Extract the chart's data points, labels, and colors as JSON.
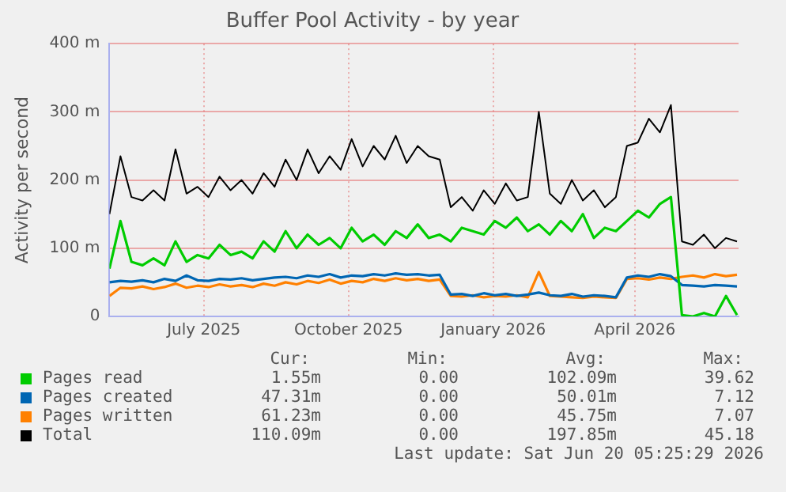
{
  "chart_data": {
    "type": "line",
    "title": "Buffer Pool Activity - by year",
    "ylabel": "Activity per second",
    "x": [
      "2025-05-16",
      "2025-05-23",
      "2025-05-30",
      "2025-06-06",
      "2025-06-13",
      "2025-06-20",
      "2025-06-27",
      "2025-07-04",
      "2025-07-11",
      "2025-07-18",
      "2025-07-25",
      "2025-08-01",
      "2025-08-08",
      "2025-08-15",
      "2025-08-22",
      "2025-08-29",
      "2025-09-05",
      "2025-09-12",
      "2025-09-19",
      "2025-09-26",
      "2025-10-03",
      "2025-10-10",
      "2025-10-17",
      "2025-10-24",
      "2025-10-31",
      "2025-11-07",
      "2025-11-14",
      "2025-11-21",
      "2025-11-28",
      "2025-12-05",
      "2025-12-12",
      "2025-12-19",
      "2025-12-26",
      "2026-01-02",
      "2026-01-09",
      "2026-01-16",
      "2026-01-23",
      "2026-01-30",
      "2026-02-06",
      "2026-02-13",
      "2026-02-20",
      "2026-02-27",
      "2026-03-06",
      "2026-03-13",
      "2026-03-20",
      "2026-03-27",
      "2026-04-03",
      "2026-04-10",
      "2026-04-17",
      "2026-04-24",
      "2026-05-01",
      "2026-05-08",
      "2026-05-15",
      "2026-05-22",
      "2026-05-29",
      "2026-06-05",
      "2026-06-12",
      "2026-06-19"
    ],
    "series": [
      {
        "name": "Pages read",
        "color": "#00cc00",
        "values": [
          70,
          140,
          80,
          75,
          85,
          75,
          110,
          80,
          90,
          85,
          105,
          90,
          95,
          85,
          110,
          95,
          125,
          100,
          120,
          105,
          115,
          100,
          130,
          110,
          120,
          105,
          125,
          115,
          135,
          115,
          120,
          110,
          130,
          125,
          120,
          140,
          130,
          145,
          125,
          135,
          120,
          140,
          125,
          150,
          115,
          130,
          125,
          140,
          155,
          145,
          165,
          175,
          2,
          0,
          5,
          0,
          30,
          2
        ]
      },
      {
        "name": "Pages created",
        "color": "#0066b3",
        "values": [
          50,
          52,
          51,
          53,
          50,
          55,
          52,
          60,
          53,
          52,
          55,
          54,
          56,
          53,
          55,
          57,
          58,
          56,
          60,
          58,
          62,
          57,
          60,
          59,
          62,
          60,
          63,
          61,
          62,
          60,
          61,
          32,
          33,
          30,
          34,
          31,
          33,
          30,
          32,
          35,
          31,
          30,
          33,
          29,
          31,
          30,
          28,
          57,
          60,
          58,
          62,
          59,
          46,
          45,
          44,
          46,
          45,
          44
        ]
      },
      {
        "name": "Pages written",
        "color": "#ff8000",
        "values": [
          30,
          42,
          41,
          44,
          40,
          43,
          48,
          42,
          45,
          43,
          47,
          44,
          46,
          43,
          48,
          45,
          50,
          47,
          52,
          49,
          54,
          48,
          52,
          50,
          55,
          52,
          56,
          53,
          55,
          52,
          54,
          30,
          29,
          31,
          28,
          30,
          29,
          31,
          28,
          65,
          30,
          29,
          28,
          27,
          29,
          28,
          27,
          55,
          56,
          54,
          57,
          55,
          58,
          60,
          57,
          62,
          59,
          61
        ]
      },
      {
        "name": "Total",
        "color": "#000000",
        "values": [
          150,
          235,
          175,
          170,
          185,
          170,
          245,
          180,
          190,
          175,
          205,
          185,
          200,
          180,
          210,
          190,
          230,
          200,
          245,
          210,
          235,
          215,
          260,
          220,
          250,
          230,
          265,
          225,
          250,
          235,
          230,
          160,
          175,
          155,
          185,
          165,
          195,
          170,
          175,
          300,
          180,
          165,
          200,
          170,
          185,
          160,
          175,
          250,
          255,
          290,
          270,
          310,
          110,
          105,
          120,
          100,
          115,
          110
        ]
      }
    ],
    "xlim": [
      "2025-05-16",
      "2026-06-20"
    ],
    "xticks": [
      {
        "value": "2025-07-15",
        "label": "July 2025"
      },
      {
        "value": "2025-10-15",
        "label": "October 2025"
      },
      {
        "value": "2026-01-15",
        "label": "January 2026"
      },
      {
        "value": "2026-04-15",
        "label": "April 2026"
      }
    ],
    "ylim": [
      0,
      400
    ],
    "yticks": [
      0,
      {
        "value": 100,
        "label": "100 m"
      },
      {
        "value": 200,
        "label": "200 m"
      },
      {
        "value": 300,
        "label": "300 m"
      },
      {
        "value": 400,
        "label": "400 m"
      }
    ],
    "grid": true,
    "legend": "bottom",
    "annotations": [
      "Cur:",
      "Min:",
      "Avg:",
      "Max:",
      "1.55m",
      "0.00",
      "102.09m",
      "39.62",
      "47.31m",
      "0.00",
      "50.01m",
      "7.12",
      "61.23m",
      "0.00",
      "45.75m",
      "7.07",
      "110.09m",
      "0.00",
      "197.85m",
      "45.18",
      "Last update: Sat Jun 20 05:25:29 2026"
    ]
  }
}
